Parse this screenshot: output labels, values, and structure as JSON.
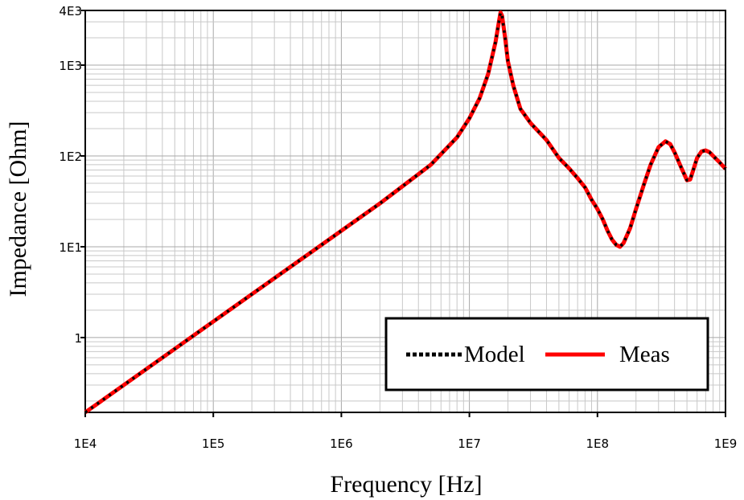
{
  "chart_data": {
    "type": "line",
    "xlabel": "Frequency [Hz]",
    "ylabel": "Impedance [Ohm]",
    "x_scale": "log",
    "y_scale": "log",
    "xlim": [
      10000,
      1000000000
    ],
    "ylim": [
      0.15,
      4000
    ],
    "grid": true,
    "legend_position": "bottom-right",
    "x_ticks": [
      {
        "value": 10000,
        "label": "1E4"
      },
      {
        "value": 100000,
        "label": "1E5"
      },
      {
        "value": 1000000,
        "label": "1E6"
      },
      {
        "value": 10000000,
        "label": "1E7"
      },
      {
        "value": 100000000,
        "label": "1E8"
      },
      {
        "value": 1000000000,
        "label": "1E9"
      }
    ],
    "y_ticks": [
      {
        "value": 1,
        "label": "1"
      },
      {
        "value": 10,
        "label": "1E1"
      },
      {
        "value": 100,
        "label": "1E2"
      },
      {
        "value": 1000,
        "label": "1E3"
      },
      {
        "value": 4000,
        "label": "4E3"
      }
    ],
    "series": [
      {
        "name": "Model",
        "color": "#000000",
        "style": "dotted",
        "x": [
          10000,
          20000,
          50000,
          100000,
          200000,
          500000,
          1000000,
          2000000,
          5000000,
          8000000,
          10000000,
          12000000,
          14000000,
          16000000,
          17000000,
          17500000,
          18000000,
          19000000,
          20000000,
          22000000,
          25000000,
          30000000,
          40000000,
          50000000,
          60000000,
          70000000,
          80000000,
          90000000,
          100000000,
          110000000,
          120000000,
          130000000,
          140000000,
          150000000,
          160000000,
          180000000,
          200000000,
          230000000,
          260000000,
          300000000,
          340000000,
          370000000,
          400000000,
          450000000,
          500000000,
          530000000,
          560000000,
          600000000,
          650000000,
          700000000,
          750000000,
          800000000,
          900000000,
          1000000000
        ],
        "y": [
          0.15,
          0.3,
          0.75,
          1.5,
          3,
          7.5,
          15,
          30,
          80,
          160,
          260,
          430,
          800,
          1800,
          3000,
          3800,
          3500,
          2000,
          1100,
          600,
          330,
          230,
          150,
          95,
          73,
          57,
          45,
          33,
          26,
          20,
          15,
          12,
          10.5,
          10,
          11,
          16,
          26,
          48,
          80,
          125,
          145,
          135,
          110,
          75,
          54,
          55,
          70,
          95,
          112,
          115,
          110,
          100,
          85,
          72
        ]
      },
      {
        "name": "Meas",
        "color": "#ff0000",
        "style": "solid",
        "x": [
          10000,
          20000,
          50000,
          100000,
          200000,
          500000,
          1000000,
          2000000,
          5000000,
          8000000,
          10000000,
          12000000,
          14000000,
          16000000,
          17000000,
          17500000,
          18000000,
          19000000,
          20000000,
          22000000,
          25000000,
          30000000,
          40000000,
          50000000,
          60000000,
          70000000,
          80000000,
          90000000,
          100000000,
          110000000,
          120000000,
          130000000,
          140000000,
          150000000,
          160000000,
          180000000,
          200000000,
          230000000,
          260000000,
          300000000,
          340000000,
          370000000,
          400000000,
          450000000,
          500000000,
          530000000,
          560000000,
          600000000,
          650000000,
          700000000,
          750000000,
          800000000,
          900000000,
          1000000000
        ],
        "y": [
          0.15,
          0.3,
          0.75,
          1.5,
          3,
          7.5,
          15,
          30,
          80,
          160,
          260,
          430,
          800,
          1800,
          3000,
          3800,
          3500,
          2000,
          1100,
          600,
          330,
          230,
          150,
          95,
          73,
          57,
          45,
          33,
          26,
          20,
          15,
          12,
          10.5,
          10,
          11,
          16,
          26,
          48,
          80,
          125,
          145,
          135,
          110,
          75,
          54,
          55,
          70,
          95,
          112,
          115,
          110,
          100,
          85,
          72
        ]
      }
    ]
  }
}
